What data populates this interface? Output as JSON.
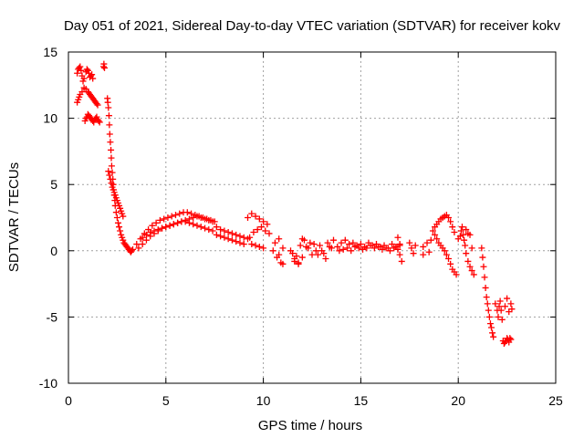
{
  "chart_data": {
    "type": "scatter",
    "title": "Day 051 of 2021, Sidereal Day-to-day VTEC variation (SDTVAR) for receiver kokv",
    "xlabel": "GPS time / hours",
    "ylabel": "SDTVAR / TECUs",
    "xlim": [
      0,
      25
    ],
    "ylim": [
      -10,
      15
    ],
    "xticks": [
      0,
      5,
      10,
      15,
      20,
      25
    ],
    "yticks": [
      -10,
      -5,
      0,
      5,
      10,
      15
    ],
    "grid": true,
    "marker": "+",
    "colors": {
      "series": "#ff0000",
      "grid": "#a0a0a0",
      "axis": "#000000"
    },
    "series": [
      {
        "name": "SDTVAR",
        "x": [
          0.45,
          0.5,
          0.55,
          0.6,
          0.65,
          0.7,
          0.75,
          0.8,
          0.9,
          0.95,
          1.0,
          1.05,
          1.1,
          1.15,
          1.2,
          1.25,
          0.45,
          0.5,
          0.55,
          0.6,
          0.7,
          0.8,
          0.9,
          1.0,
          1.05,
          1.1,
          1.15,
          1.2,
          1.25,
          1.3,
          1.35,
          1.4,
          1.45,
          1.5,
          0.85,
          0.9,
          0.95,
          1.0,
          1.05,
          1.1,
          1.15,
          1.2,
          1.25,
          1.3,
          1.35,
          1.4,
          1.45,
          1.5,
          1.55,
          1.6,
          1.8,
          1.82,
          1.85,
          2.0,
          2.02,
          2.05,
          2.08,
          2.1,
          2.12,
          2.15,
          2.18,
          2.2,
          2.22,
          2.25,
          2.28,
          2.3,
          2.32,
          2.35,
          2.38,
          2.4,
          2.45,
          2.5,
          2.55,
          2.6,
          2.65,
          2.7,
          2.75,
          2.8,
          2.85,
          2.9,
          2.95,
          3.0,
          3.05,
          3.1,
          3.15,
          3.2,
          3.25,
          3.3,
          2.05,
          2.1,
          2.15,
          2.2,
          2.25,
          2.3,
          2.35,
          2.4,
          2.45,
          2.5,
          2.55,
          2.6,
          2.65,
          2.7,
          2.75,
          2.8,
          3.5,
          3.7,
          3.9,
          4.1,
          4.3,
          4.5,
          4.7,
          4.9,
          5.1,
          5.3,
          5.5,
          5.7,
          5.9,
          6.1,
          6.3,
          6.5,
          6.7,
          6.9,
          7.1,
          7.3,
          7.5,
          3.6,
          3.8,
          4.0,
          4.2,
          4.4,
          4.6,
          4.8,
          5.0,
          5.2,
          5.4,
          5.6,
          5.8,
          6.0,
          6.2,
          6.4,
          6.6,
          6.8,
          7.0,
          7.2,
          7.4,
          3.8,
          4.0,
          4.2,
          4.4,
          4.6,
          4.8,
          5.0,
          5.2,
          5.4,
          5.6,
          5.8,
          6.0,
          6.2,
          6.4,
          6.6,
          6.8,
          7.0,
          7.2,
          7.4,
          7.6,
          7.8,
          8.0,
          8.2,
          8.4,
          8.6,
          8.8,
          9.0,
          9.2,
          7.6,
          7.8,
          8.0,
          8.2,
          8.4,
          8.6,
          8.8,
          9.0,
          9.2,
          9.4,
          9.6,
          9.8,
          10.0,
          10.2,
          9.3,
          9.5,
          9.7,
          9.9,
          10.1,
          10.3,
          9.4,
          9.6,
          9.8,
          10.0,
          10.5,
          10.7,
          10.9,
          11.0,
          10.6,
          10.8,
          11.0,
          10.8,
          11.4,
          11.6,
          11.8,
          12.0,
          12.2,
          12.4,
          11.5,
          11.7,
          11.9,
          12.1,
          12.3,
          12.5,
          11.6,
          11.8,
          12.0,
          12.6,
          12.8,
          13.0,
          13.2,
          13.4,
          13.6,
          12.7,
          12.9,
          13.1,
          13.3,
          13.5,
          13.8,
          14.0,
          14.2,
          14.4,
          14.6,
          14.8,
          15.0,
          15.2,
          15.4,
          15.6,
          15.8,
          16.0,
          16.2,
          16.4,
          16.6,
          16.8,
          17.0,
          13.9,
          14.1,
          14.3,
          14.5,
          14.7,
          14.9,
          15.1,
          15.3,
          15.5,
          15.7,
          15.9,
          16.1,
          16.3,
          16.5,
          16.7,
          16.9,
          16.9,
          17.0,
          17.1,
          17.0,
          17.5,
          17.6,
          17.7,
          17.8,
          18.2,
          18.4,
          18.6,
          18.2,
          18.5,
          18.7,
          18.8,
          18.9,
          19.0,
          19.1,
          19.2,
          19.3,
          19.4,
          19.5,
          19.6,
          19.7,
          19.8,
          18.8,
          18.9,
          19.0,
          19.1,
          19.2,
          19.3,
          19.4,
          19.5,
          19.6,
          19.7,
          19.8,
          19.9,
          20.0,
          20.1,
          20.15,
          20.2,
          20.25,
          20.3,
          20.35,
          20.4,
          20.5,
          20.6,
          20.7,
          20.8,
          20.4,
          20.5,
          20.6,
          20.7,
          21.2,
          21.25,
          21.3,
          21.35,
          21.4,
          21.45,
          21.5,
          21.55,
          21.6,
          21.65,
          21.7,
          21.75,
          21.8,
          21.9,
          22.0,
          22.05,
          22.1,
          22.15,
          22.2,
          22.25,
          22.3,
          22.35,
          22.4,
          22.45,
          22.5,
          22.55,
          22.6,
          22.65,
          22.7,
          22.4,
          22.5,
          22.6,
          22.7,
          22.75
        ],
        "y": [
          13.4,
          13.7,
          13.8,
          13.9,
          13.6,
          13.2,
          12.8,
          13.0,
          13.5,
          13.7,
          13.6,
          13.4,
          13.1,
          13.2,
          13.3,
          13.0,
          11.2,
          11.4,
          11.6,
          11.8,
          12.0,
          12.3,
          12.2,
          12.0,
          11.9,
          11.8,
          11.7,
          11.6,
          11.5,
          11.4,
          11.3,
          11.2,
          11.1,
          11.0,
          9.8,
          10.0,
          10.1,
          10.3,
          10.2,
          10.1,
          10.0,
          9.9,
          9.8,
          9.7,
          9.9,
          10.0,
          10.1,
          9.9,
          9.8,
          9.7,
          13.9,
          14.1,
          13.8,
          11.5,
          11.2,
          10.8,
          10.2,
          9.5,
          8.8,
          8.2,
          7.6,
          7.0,
          6.4,
          5.9,
          5.4,
          5.0,
          4.6,
          4.2,
          3.8,
          3.4,
          2.9,
          2.5,
          2.1,
          1.8,
          1.5,
          1.2,
          1.0,
          0.8,
          0.6,
          0.5,
          0.4,
          0.3,
          0.2,
          0.1,
          0.0,
          -0.1,
          0.0,
          0.1,
          6.0,
          5.7,
          5.4,
          5.1,
          4.8,
          4.6,
          4.4,
          4.2,
          4.0,
          3.8,
          3.6,
          3.4,
          3.2,
          3.0,
          2.8,
          2.6,
          0.5,
          0.9,
          1.3,
          1.6,
          1.9,
          2.1,
          2.3,
          2.4,
          2.5,
          2.6,
          2.7,
          2.8,
          2.9,
          2.9,
          2.8,
          2.7,
          2.6,
          2.5,
          2.4,
          2.3,
          2.2,
          0.2,
          0.5,
          0.8,
          1.1,
          1.3,
          1.5,
          1.7,
          1.8,
          1.9,
          2.0,
          2.1,
          2.2,
          2.2,
          2.1,
          2.0,
          1.9,
          1.8,
          1.7,
          1.6,
          1.5,
          1.0,
          1.2,
          1.4,
          1.5,
          1.6,
          1.7,
          1.8,
          1.9,
          2.0,
          2.1,
          2.2,
          2.3,
          2.4,
          2.5,
          2.6,
          2.5,
          2.4,
          2.3,
          2.2,
          1.8,
          1.6,
          1.5,
          1.4,
          1.3,
          1.2,
          1.1,
          1.0,
          0.9,
          1.2,
          1.1,
          1.0,
          0.9,
          0.8,
          0.7,
          0.6,
          0.5,
          2.5,
          2.8,
          2.6,
          2.4,
          2.2,
          2.0,
          1.0,
          1.4,
          1.6,
          1.8,
          1.5,
          1.3,
          0.5,
          0.4,
          0.3,
          0.2,
          0.0,
          -0.5,
          -0.9,
          -1.0,
          0.6,
          0.9,
          0.2,
          -0.3,
          0.0,
          -0.6,
          -0.9,
          -0.5,
          0.3,
          0.6,
          -0.2,
          -0.4,
          0.4,
          0.8,
          0.2,
          -0.3,
          -0.8,
          -1.0,
          0.9,
          0.5,
          -0.3,
          0.0,
          -0.6,
          0.3,
          0.8,
          0.0,
          0.4,
          -0.2,
          0.6,
          0.2,
          0.3,
          0.6,
          0.8,
          0.5,
          0.6,
          0.4,
          0.5,
          0.3,
          0.6,
          0.4,
          0.5,
          0.3,
          0.4,
          0.2,
          0.5,
          0.3,
          0.4,
          0.0,
          0.1,
          0.2,
          0.0,
          0.3,
          0.2,
          0.1,
          0.2,
          0.4,
          0.2,
          0.3,
          0.1,
          0.2,
          0.0,
          0.2,
          0.1,
          1.0,
          -0.3,
          -0.8,
          0.5,
          0.6,
          0.2,
          -0.2,
          0.4,
          -0.3,
          0.6,
          0.8,
          0.3,
          -0.1,
          1.5,
          1.8,
          2.0,
          2.2,
          2.4,
          2.5,
          2.6,
          2.7,
          2.5,
          2.2,
          1.8,
          1.4,
          1.2,
          0.9,
          0.6,
          0.4,
          0.2,
          0.0,
          -0.3,
          -0.6,
          -1.0,
          -1.4,
          -1.6,
          -1.8,
          0.9,
          1.1,
          1.5,
          1.8,
          1.2,
          0.8,
          0.4,
          -0.2,
          -0.8,
          -1.2,
          -1.5,
          -1.8,
          1.6,
          1.3,
          1.2,
          0.2,
          0.2,
          -0.5,
          -1.2,
          -2.0,
          -2.8,
          -3.5,
          -4.0,
          -4.5,
          -5.0,
          -5.5,
          -5.8,
          -6.2,
          -6.5,
          -4.0,
          -4.5,
          -5.0,
          -4.2,
          -3.8,
          -4.5,
          -5.2,
          -6.8,
          -7.0,
          -6.9,
          -6.8,
          -6.6,
          -6.7,
          -6.9,
          -6.6,
          -6.7,
          -4.2,
          -3.6,
          -4.6,
          -4.0,
          -4.4
        ]
      }
    ]
  }
}
